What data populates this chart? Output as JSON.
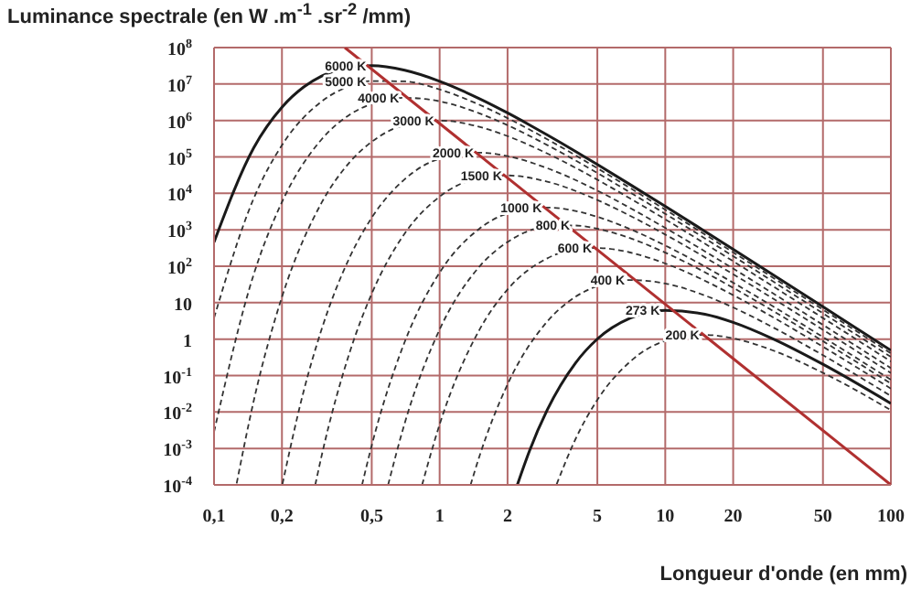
{
  "chart_data": {
    "type": "line",
    "xlabel": "Longueur d'onde (en mm)",
    "ylabel": "Luminance spectrale (en W .m$^{-1}$ .sr$^{-2}$ /mm)",
    "log": "xy",
    "grid": true,
    "xlim": [
      0.1,
      100
    ],
    "xticks": [
      {
        "value": 0.1,
        "label": "0,1"
      },
      {
        "value": 0.2,
        "label": "0,2"
      },
      {
        "value": 0.5,
        "label": "0,5"
      },
      1,
      2,
      5,
      10,
      20,
      50,
      100
    ],
    "ylim": [
      0.0001,
      100000000
    ],
    "yticks": [
      {
        "value": 0.0001,
        "label": "10$^{-4}$"
      },
      {
        "value": 0.001,
        "label": "10$^{-3}$"
      },
      {
        "value": 0.01,
        "label": "10$^{-2}$"
      },
      {
        "value": 0.1,
        "label": "10$^{-1}$"
      },
      1,
      10,
      {
        "value": 100,
        "label": "10$^{2}$"
      },
      {
        "value": 1000,
        "label": "10$^{3}$"
      },
      {
        "value": 10000,
        "label": "10$^{4}$"
      },
      {
        "value": 100000,
        "label": "10$^{5}$"
      },
      {
        "value": 1000000,
        "label": "10$^{6}$"
      },
      {
        "value": 10000000,
        "label": "10$^{7}$"
      },
      {
        "value": 100000000,
        "label": "10$^{8}$"
      }
    ],
    "series": [
      {
        "name": "6000 K",
        "color": "#1a1a1a",
        "line_style": "solid",
        "x": [
          0.1,
          0.15,
          0.2,
          0.25,
          0.3,
          0.4,
          0.5,
          0.7,
          1,
          1.5,
          2,
          2.5,
          3,
          4,
          5,
          7,
          10,
          15,
          20,
          30,
          50,
          70,
          100
        ],
        "values": [
          458,
          179000,
          2310000,
          8300000,
          16500000,
          29000000,
          31800000,
          23800000,
          11900000,
          3970000,
          1610000,
          757000,
          400000,
          142000,
          61900,
          17300,
          4400,
          904,
          292,
          58.9,
          7.76,
          2.03,
          0.491
        ]
      },
      {
        "name": "5000 K",
        "color": "#333333",
        "line_style": "dashed",
        "x": [
          0.1,
          0.15,
          0.2,
          0.3,
          0.4,
          0.5,
          0.7,
          1,
          1.5,
          2,
          3,
          5,
          7,
          10,
          20,
          30,
          50,
          100
        ],
        "values": [
          3.79,
          7310,
          210000,
          3340000,
          8750000,
          12100000,
          11800000,
          7100000,
          2700000,
          1160000,
          304000,
          49000,
          13900,
          3570,
          240,
          48.6,
          6.43,
          0.408
        ]
      },
      {
        "name": "4000 K",
        "color": "#333333",
        "line_style": "dashed",
        "x": [
          0.1,
          0.15,
          0.2,
          0.3,
          0.4,
          0.5,
          0.7,
          1,
          1.5,
          2,
          3,
          5,
          7,
          10,
          20,
          30,
          50,
          100
        ],
        "values": [
          0.00284,
          60.3,
          5750,
          304000,
          1450000,
          2860000,
          4180000,
          3360000,
          1570000,
          740000,
          211000,
          36200,
          10500,
          2750,
          189,
          38.5,
          5.11,
          0.325
        ]
      },
      {
        "name": "3000 K",
        "color": "#333333",
        "line_style": "dashed",
        "x": [
          0.126,
          0.15,
          0.2,
          0.3,
          0.4,
          0.5,
          0.7,
          1,
          1.5,
          2,
          3,
          5,
          7,
          10,
          20,
          30,
          50,
          100
        ],
        "values": [
          0.00011,
          0.0204,
          14.3,
          5580,
          72200,
          260000,
          750000,
          993000,
          668000,
          372000,
          124000,
          23700,
          7200,
          1940,
          137,
          28.2,
          3.79,
          0.243
        ]
      },
      {
        "name": "2000 K",
        "color": "#333333",
        "line_style": "dashed",
        "x": [
          0.201,
          0.25,
          0.3,
          0.4,
          0.5,
          0.7,
          1,
          1.5,
          2,
          3,
          5,
          7,
          10,
          20,
          30,
          50,
          100
        ],
        "values": [
          0.000105,
          0.0387,
          1.88,
          180,
          2150,
          24400,
          89600,
          131000,
          105000,
          49000,
          11900,
          3940,
          1130,
          86.1,
          18.1,
          2.46,
          0.16
        ]
      },
      {
        "name": "1500 K",
        "color": "#333333",
        "line_style": "dashed",
        "x": [
          0.281,
          0.3,
          0.4,
          0.5,
          0.7,
          1,
          1.5,
          2,
          3,
          5,
          7,
          10,
          20,
          30,
          50,
          100
        ],
        "values": [
          0.0001,
          0.000637,
          0.448,
          17.7,
          792,
          8130,
          26200,
          31000,
          20900,
          6560,
          2410,
          740,
          60.5,
          13,
          1.8,
          0.118
        ]
      },
      {
        "name": "1000 K",
        "color": "#333333",
        "line_style": "dashed",
        "x": [
          0.453,
          0.5,
          0.7,
          1,
          1.5,
          2,
          3,
          4,
          5,
          7,
          10,
          20,
          30,
          50,
          100
        ],
        "values": [
          0.0001,
          0.00121,
          0.838,
          67.2,
          1070,
          2800,
          4080,
          3280,
          2270,
          1040,
          371,
          35.3,
          7.96,
          1.14,
          0.0769
        ]
      },
      {
        "name": "800 K",
        "color": "#333333",
        "line_style": "dashed",
        "x": [
          0.591,
          0.7,
          1,
          1.5,
          2,
          3,
          4,
          5,
          7,
          10,
          20,
          30,
          50,
          100
        ],
        "values": [
          0.0001,
          0.00492,
          1.84,
          97.3,
          463,
          1220,
          1310,
          1070,
          587,
          237,
          25.6,
          5.96,
          0.881,
          0.0604
        ]
      },
      {
        "name": "600 K",
        "color": "#333333",
        "line_style": "dashed",
        "x": [
          0.836,
          1,
          1.5,
          2,
          3,
          4,
          5,
          7,
          10,
          20,
          30,
          50,
          100
        ],
        "values": [
          0.0001,
          0.00458,
          1.79,
          23.1,
          165,
          290,
          318,
          238,
          119,
          16.1,
          4,
          0.619,
          0.044
        ]
      },
      {
        "name": "400 K",
        "color": "#333333",
        "line_style": "dashed",
        "x": [
          1.371,
          1.5,
          2,
          3,
          4,
          5,
          7,
          10,
          15,
          20,
          30,
          50,
          100
        ],
        "values": [
          0.0001,
          0.000603,
          0.0575,
          3.04,
          14.5,
          28.6,
          41.8,
          33.6,
          15.7,
          7.4,
          2.11,
          0.361,
          0.0275
        ]
      },
      {
        "name": "273 K",
        "color": "#1a1a1a",
        "line_style": "solid",
        "x": [
          2.21,
          2.5,
          3,
          4,
          5,
          7,
          10,
          15,
          20,
          30,
          50,
          100
        ],
        "values": [
          0.0001,
          0.000853,
          0.0115,
          0.221,
          1.01,
          3.8,
          6.16,
          4.81,
          2.88,
          1.02,
          0.204,
          0.0172
        ]
      },
      {
        "name": "200 K",
        "color": "#333333",
        "line_style": "dashed",
        "x": [
          3.3,
          4,
          5,
          7,
          10,
          15,
          20,
          30,
          50,
          100
        ],
        "values": [
          0.000104,
          0.0018,
          0.0215,
          0.244,
          0.896,
          1.31,
          1.05,
          0.49,
          0.119,
          0.0113
        ]
      },
      {
        "color": "#b03030",
        "line_style": "solid",
        "x": [
          0.38,
          100
        ],
        "values": [
          100000000,
          0.0001
        ]
      }
    ]
  }
}
